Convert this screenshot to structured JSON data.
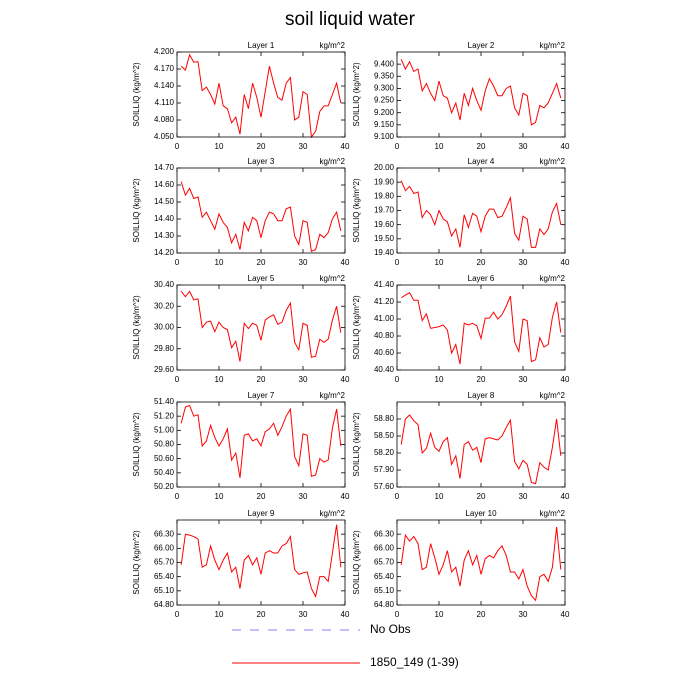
{
  "title": "soil liquid water",
  "legend": [
    {
      "name": "No Obs",
      "color": "#8080ff",
      "dash": true
    },
    {
      "name": "1850_149 (1-39)",
      "color": "#ff0000",
      "dash": false
    }
  ],
  "chart_data": [
    {
      "type": "line",
      "title": "Layer 1",
      "unit": "kg/m^2",
      "ylabel": "SOILLIQ  (kg/m^2)",
      "color": "#ff0000",
      "x": [
        1,
        2,
        3,
        4,
        5,
        6,
        7,
        8,
        9,
        10,
        11,
        12,
        13,
        14,
        15,
        16,
        17,
        18,
        19,
        20,
        21,
        22,
        23,
        24,
        25,
        26,
        27,
        28,
        29,
        30,
        31,
        32,
        33,
        34,
        35,
        36,
        37,
        38,
        39
      ],
      "values": [
        4.175,
        4.168,
        4.195,
        4.182,
        4.183,
        4.132,
        4.138,
        4.125,
        4.108,
        4.145,
        4.105,
        4.1,
        4.075,
        4.085,
        4.055,
        4.125,
        4.1,
        4.145,
        4.12,
        4.085,
        4.13,
        4.175,
        4.145,
        4.12,
        4.115,
        4.145,
        4.155,
        4.08,
        4.085,
        4.13,
        4.125,
        4.05,
        4.06,
        4.095,
        4.105,
        4.105,
        4.125,
        4.145,
        4.11
      ],
      "xlim": [
        0,
        40
      ],
      "xticks": [
        0,
        10,
        20,
        30,
        40
      ],
      "ylim": [
        4.05,
        4.2
      ],
      "yticks": [
        {
          "value": 4.05,
          "label": "4.050"
        },
        {
          "value": 4.08,
          "label": "4.080"
        },
        {
          "value": 4.11,
          "label": "4.110"
        },
        {
          "value": 4.14,
          "label": "4.140"
        },
        {
          "value": 4.17,
          "label": "4.170"
        },
        {
          "value": 4.2,
          "label": "4.200"
        }
      ]
    },
    {
      "type": "line",
      "title": "Layer 2",
      "unit": "kg/m^2",
      "ylabel": "SOILLIQ  (kg/m^2)",
      "color": "#ff0000",
      "x": [
        1,
        2,
        3,
        4,
        5,
        6,
        7,
        8,
        9,
        10,
        11,
        12,
        13,
        14,
        15,
        16,
        17,
        18,
        19,
        20,
        21,
        22,
        23,
        24,
        25,
        26,
        27,
        28,
        29,
        30,
        31,
        32,
        33,
        34,
        35,
        36,
        37,
        38,
        39
      ],
      "values": [
        9.42,
        9.38,
        9.41,
        9.37,
        9.38,
        9.29,
        9.32,
        9.28,
        9.25,
        9.33,
        9.27,
        9.26,
        9.2,
        9.24,
        9.17,
        9.28,
        9.23,
        9.3,
        9.25,
        9.21,
        9.29,
        9.34,
        9.31,
        9.27,
        9.27,
        9.3,
        9.31,
        9.22,
        9.19,
        9.28,
        9.27,
        9.15,
        9.16,
        9.23,
        9.22,
        9.24,
        9.28,
        9.32,
        9.26
      ],
      "xlim": [
        0,
        40
      ],
      "xticks": [
        0,
        10,
        20,
        30,
        40
      ],
      "ylim": [
        9.1,
        9.45
      ],
      "yticks": [
        {
          "value": 9.1,
          "label": "9.100"
        },
        {
          "value": 9.15,
          "label": "9.150"
        },
        {
          "value": 9.2,
          "label": "9.200"
        },
        {
          "value": 9.25,
          "label": "9.250"
        },
        {
          "value": 9.3,
          "label": "9.300"
        },
        {
          "value": 9.35,
          "label": "9.350"
        },
        {
          "value": 9.4,
          "label": "9.400"
        }
      ]
    },
    {
      "type": "line",
      "title": "Layer 3",
      "unit": "kg/m^2",
      "ylabel": "SOILLIQ  (kg/m^2)",
      "color": "#ff0000",
      "x": [
        1,
        2,
        3,
        4,
        5,
        6,
        7,
        8,
        9,
        10,
        11,
        12,
        13,
        14,
        15,
        16,
        17,
        18,
        19,
        20,
        21,
        22,
        23,
        24,
        25,
        26,
        27,
        28,
        29,
        30,
        31,
        32,
        33,
        34,
        35,
        36,
        37,
        38,
        39
      ],
      "values": [
        14.62,
        14.54,
        14.58,
        14.52,
        14.53,
        14.41,
        14.44,
        14.39,
        14.34,
        14.43,
        14.38,
        14.35,
        14.26,
        14.31,
        14.22,
        14.38,
        14.33,
        14.41,
        14.39,
        14.29,
        14.39,
        14.44,
        14.43,
        14.39,
        14.39,
        14.46,
        14.47,
        14.3,
        14.25,
        14.39,
        14.38,
        14.21,
        14.22,
        14.31,
        14.29,
        14.32,
        14.4,
        14.44,
        14.33
      ],
      "xlim": [
        0,
        40
      ],
      "xticks": [
        0,
        10,
        20,
        30,
        40
      ],
      "ylim": [
        14.2,
        14.7
      ],
      "yticks": [
        {
          "value": 14.2,
          "label": "14.20"
        },
        {
          "value": 14.3,
          "label": "14.30"
        },
        {
          "value": 14.4,
          "label": "14.40"
        },
        {
          "value": 14.5,
          "label": "14.50"
        },
        {
          "value": 14.6,
          "label": "14.60"
        },
        {
          "value": 14.7,
          "label": "14.70"
        }
      ]
    },
    {
      "type": "line",
      "title": "Layer 4",
      "unit": "kg/m^2",
      "ylabel": "SOILLIQ  (kg/m^2)",
      "color": "#ff0000",
      "x": [
        1,
        2,
        3,
        4,
        5,
        6,
        7,
        8,
        9,
        10,
        11,
        12,
        13,
        14,
        15,
        16,
        17,
        18,
        19,
        20,
        21,
        22,
        23,
        24,
        25,
        26,
        27,
        28,
        29,
        30,
        31,
        32,
        33,
        34,
        35,
        36,
        37,
        38,
        39
      ],
      "values": [
        19.91,
        19.84,
        19.87,
        19.82,
        19.83,
        19.65,
        19.7,
        19.67,
        19.6,
        19.7,
        19.64,
        19.62,
        19.52,
        19.57,
        19.44,
        19.67,
        19.58,
        19.68,
        19.66,
        19.55,
        19.66,
        19.71,
        19.71,
        19.65,
        19.66,
        19.72,
        19.79,
        19.54,
        19.49,
        19.66,
        19.64,
        19.44,
        19.44,
        19.57,
        19.53,
        19.57,
        19.69,
        19.75,
        19.6
      ],
      "xlim": [
        0,
        40
      ],
      "xticks": [
        0,
        10,
        20,
        30,
        40
      ],
      "ylim": [
        19.4,
        20.0
      ],
      "yticks": [
        {
          "value": 19.4,
          "label": "19.40"
        },
        {
          "value": 19.5,
          "label": "19.50"
        },
        {
          "value": 19.6,
          "label": "19.60"
        },
        {
          "value": 19.7,
          "label": "19.70"
        },
        {
          "value": 19.8,
          "label": "19.80"
        },
        {
          "value": 19.9,
          "label": "19.90"
        },
        {
          "value": 20.0,
          "label": "20.00"
        }
      ]
    },
    {
      "type": "line",
      "title": "Layer 5",
      "unit": "kg/m^2",
      "ylabel": "SOILLIQ  (kg/m^2)",
      "color": "#ff0000",
      "x": [
        1,
        2,
        3,
        4,
        5,
        6,
        7,
        8,
        9,
        10,
        11,
        12,
        13,
        14,
        15,
        16,
        17,
        18,
        19,
        20,
        21,
        22,
        23,
        24,
        25,
        26,
        27,
        28,
        29,
        30,
        31,
        32,
        33,
        34,
        35,
        36,
        37,
        38,
        39
      ],
      "values": [
        30.34,
        30.29,
        30.34,
        30.26,
        30.27,
        30.0,
        30.05,
        30.06,
        29.96,
        30.05,
        30.0,
        29.98,
        29.81,
        29.87,
        29.68,
        30.04,
        29.99,
        30.04,
        30.02,
        29.88,
        30.07,
        30.1,
        30.12,
        30.03,
        30.05,
        30.16,
        30.23,
        29.86,
        29.79,
        30.04,
        30.02,
        29.72,
        29.73,
        29.89,
        29.86,
        29.89,
        30.07,
        30.2,
        29.95
      ],
      "xlim": [
        0,
        40
      ],
      "xticks": [
        0,
        10,
        20,
        30,
        40
      ],
      "ylim": [
        29.6,
        30.4
      ],
      "yticks": [
        {
          "value": 29.6,
          "label": "29.60"
        },
        {
          "value": 29.8,
          "label": "29.80"
        },
        {
          "value": 30.0,
          "label": "30.00"
        },
        {
          "value": 30.2,
          "label": "30.20"
        },
        {
          "value": 30.4,
          "label": "30.40"
        }
      ]
    },
    {
      "type": "line",
      "title": "Layer 6",
      "unit": "kg/m^2",
      "ylabel": "SOILLIQ  (kg/m^2)",
      "color": "#ff0000",
      "x": [
        1,
        2,
        3,
        4,
        5,
        6,
        7,
        8,
        9,
        10,
        11,
        12,
        13,
        14,
        15,
        16,
        17,
        18,
        19,
        20,
        21,
        22,
        23,
        24,
        25,
        26,
        27,
        28,
        29,
        30,
        31,
        32,
        33,
        34,
        35,
        36,
        37,
        38,
        39
      ],
      "values": [
        41.25,
        41.28,
        41.31,
        41.22,
        41.22,
        40.98,
        41.06,
        40.89,
        40.9,
        40.91,
        40.93,
        40.87,
        40.6,
        40.7,
        40.47,
        40.95,
        40.93,
        40.95,
        40.92,
        40.77,
        41.01,
        41.01,
        41.08,
        41.0,
        41.05,
        41.15,
        41.27,
        40.73,
        40.62,
        41.0,
        40.98,
        40.5,
        40.52,
        40.78,
        40.67,
        40.7,
        41.02,
        41.2,
        40.84
      ],
      "xlim": [
        0,
        40
      ],
      "xticks": [
        0,
        10,
        20,
        30,
        40
      ],
      "ylim": [
        40.4,
        41.4
      ],
      "yticks": [
        {
          "value": 40.4,
          "label": "40.40"
        },
        {
          "value": 40.6,
          "label": "40.60"
        },
        {
          "value": 40.8,
          "label": "40.80"
        },
        {
          "value": 41.0,
          "label": "41.00"
        },
        {
          "value": 41.2,
          "label": "41.20"
        },
        {
          "value": 41.4,
          "label": "41.40"
        }
      ]
    },
    {
      "type": "line",
      "title": "Layer 7",
      "unit": "kg/m^2",
      "ylabel": "SOILLIQ  (kg/m^2)",
      "color": "#ff0000",
      "x": [
        1,
        2,
        3,
        4,
        5,
        6,
        7,
        8,
        9,
        10,
        11,
        12,
        13,
        14,
        15,
        16,
        17,
        18,
        19,
        20,
        21,
        22,
        23,
        24,
        25,
        26,
        27,
        28,
        29,
        30,
        31,
        32,
        33,
        34,
        35,
        36,
        37,
        38,
        39
      ],
      "values": [
        51.1,
        51.33,
        51.35,
        51.2,
        51.22,
        50.78,
        50.85,
        51.07,
        50.9,
        50.78,
        50.88,
        51.02,
        50.58,
        50.68,
        50.33,
        50.93,
        50.95,
        50.85,
        50.88,
        50.78,
        50.98,
        51.02,
        51.1,
        50.93,
        51.05,
        51.2,
        51.3,
        50.63,
        50.5,
        50.95,
        50.93,
        50.35,
        50.37,
        50.6,
        50.55,
        50.58,
        51.03,
        51.3,
        50.78
      ],
      "xlim": [
        0,
        40
      ],
      "xticks": [
        0,
        10,
        20,
        30,
        40
      ],
      "ylim": [
        50.2,
        51.4
      ],
      "yticks": [
        {
          "value": 50.2,
          "label": "50.20"
        },
        {
          "value": 50.4,
          "label": "50.40"
        },
        {
          "value": 50.6,
          "label": "50.60"
        },
        {
          "value": 50.8,
          "label": "50.80"
        },
        {
          "value": 51.0,
          "label": "51.00"
        },
        {
          "value": 51.2,
          "label": "51.20"
        },
        {
          "value": 51.4,
          "label": "51.40"
        }
      ]
    },
    {
      "type": "line",
      "title": "Layer 8",
      "unit": "kg/m^2",
      "ylabel": "SOILLIQ  (kg/m^2)",
      "color": "#ff0000",
      "x": [
        1,
        2,
        3,
        4,
        5,
        6,
        7,
        8,
        9,
        10,
        11,
        12,
        13,
        14,
        15,
        16,
        17,
        18,
        19,
        20,
        21,
        22,
        23,
        24,
        25,
        26,
        27,
        28,
        29,
        30,
        31,
        32,
        33,
        34,
        35,
        36,
        37,
        38,
        39
      ],
      "values": [
        58.35,
        58.8,
        58.87,
        58.77,
        58.7,
        58.2,
        58.28,
        58.55,
        58.3,
        58.23,
        58.4,
        58.47,
        58.0,
        58.15,
        57.75,
        58.35,
        58.4,
        58.25,
        58.3,
        58.03,
        58.45,
        58.47,
        58.45,
        58.43,
        58.5,
        58.65,
        58.78,
        58.05,
        57.92,
        58.07,
        58.0,
        57.68,
        57.66,
        58.03,
        57.95,
        57.9,
        58.3,
        58.8,
        58.15
      ],
      "xlim": [
        0,
        40
      ],
      "xticks": [
        0,
        10,
        20,
        30,
        40
      ],
      "ylim": [
        57.6,
        59.1
      ],
      "yticks": [
        {
          "value": 57.6,
          "label": "57.60"
        },
        {
          "value": 57.9,
          "label": "57.90"
        },
        {
          "value": 58.2,
          "label": "58.20"
        },
        {
          "value": 58.5,
          "label": "58.50"
        },
        {
          "value": 58.8,
          "label": "58.80"
        }
      ]
    },
    {
      "type": "line",
      "title": "Layer 9",
      "unit": "kg/m^2",
      "ylabel": "SOILLIQ  (kg/m^2)",
      "color": "#ff0000",
      "x": [
        1,
        2,
        3,
        4,
        5,
        6,
        7,
        8,
        9,
        10,
        11,
        12,
        13,
        14,
        15,
        16,
        17,
        18,
        19,
        20,
        21,
        22,
        23,
        24,
        25,
        26,
        27,
        28,
        29,
        30,
        31,
        32,
        33,
        34,
        35,
        36,
        37,
        38,
        39
      ],
      "values": [
        65.65,
        66.3,
        66.28,
        66.25,
        66.2,
        65.6,
        65.65,
        66.05,
        65.75,
        65.55,
        65.75,
        65.9,
        65.5,
        65.6,
        65.15,
        65.75,
        65.85,
        65.65,
        65.8,
        65.45,
        65.9,
        65.95,
        65.9,
        65.9,
        66.05,
        66.1,
        66.25,
        65.55,
        65.45,
        65.48,
        65.5,
        65.15,
        64.98,
        65.4,
        65.4,
        65.3,
        65.9,
        66.5,
        65.6
      ],
      "xlim": [
        0,
        40
      ],
      "xticks": [
        0,
        10,
        20,
        30,
        40
      ],
      "ylim": [
        64.8,
        66.6
      ],
      "yticks": [
        {
          "value": 64.8,
          "label": "64.80"
        },
        {
          "value": 65.1,
          "label": "65.10"
        },
        {
          "value": 65.4,
          "label": "65.40"
        },
        {
          "value": 65.7,
          "label": "65.70"
        },
        {
          "value": 66.0,
          "label": "66.00"
        },
        {
          "value": 66.3,
          "label": "66.30"
        }
      ]
    },
    {
      "type": "line",
      "title": "Layer 10",
      "unit": "kg/m^2",
      "ylabel": "SOILLIQ  (kg/m^2)",
      "color": "#ff0000",
      "x": [
        1,
        2,
        3,
        4,
        5,
        6,
        7,
        8,
        9,
        10,
        11,
        12,
        13,
        14,
        15,
        16,
        17,
        18,
        19,
        20,
        21,
        22,
        23,
        24,
        25,
        26,
        27,
        28,
        29,
        30,
        31,
        32,
        33,
        34,
        35,
        36,
        37,
        38,
        39
      ],
      "values": [
        65.65,
        66.28,
        66.15,
        66.25,
        66.1,
        65.55,
        65.6,
        66.1,
        65.8,
        65.45,
        65.65,
        65.95,
        65.5,
        65.6,
        65.2,
        65.75,
        65.95,
        65.65,
        65.85,
        65.45,
        65.78,
        65.85,
        65.8,
        65.95,
        66.05,
        65.85,
        65.5,
        65.5,
        65.35,
        65.55,
        65.2,
        65.0,
        64.9,
        65.4,
        65.45,
        65.3,
        65.6,
        66.45,
        65.55
      ],
      "xlim": [
        0,
        40
      ],
      "xticks": [
        0,
        10,
        20,
        30,
        40
      ],
      "ylim": [
        64.8,
        66.6
      ],
      "yticks": [
        {
          "value": 64.8,
          "label": "64.80"
        },
        {
          "value": 65.1,
          "label": "65.10"
        },
        {
          "value": 65.4,
          "label": "65.40"
        },
        {
          "value": 65.7,
          "label": "65.70"
        },
        {
          "value": 66.0,
          "label": "66.00"
        },
        {
          "value": 66.3,
          "label": "66.30"
        }
      ]
    }
  ]
}
